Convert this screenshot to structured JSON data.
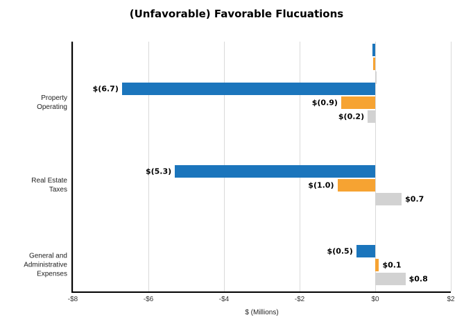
{
  "chart_data": {
    "type": "bar",
    "orientation": "horizontal",
    "title": "(Unfavorable) Favorable Flucuations",
    "xlabel": "$ (Millions)",
    "xlim": [
      -8,
      2
    ],
    "xticks": [
      -8,
      -6,
      -4,
      -2,
      0,
      2
    ],
    "xtick_labels": [
      "-$8",
      "-$6",
      "-$4",
      "-$2",
      "$0",
      "$2"
    ],
    "grid": "vertical",
    "legend": "none",
    "series_colors": [
      "#1B75BC",
      "#F6A332",
      "#D2D2D2"
    ],
    "categories": [
      {
        "label": "",
        "values": [
          -0.08,
          -0.06,
          0.03
        ],
        "bar_labels": [
          "",
          "",
          ""
        ]
      },
      {
        "label": "Property\nOperating",
        "values": [
          -6.7,
          -0.9,
          -0.2
        ],
        "bar_labels": [
          "$(6.7)",
          "$(0.9)",
          "$(0.2)"
        ]
      },
      {
        "label": "Real Estate\nTaxes",
        "values": [
          -5.3,
          -1.0,
          0.7
        ],
        "bar_labels": [
          "$(5.3)",
          "$(1.0)",
          "$0.7"
        ]
      },
      {
        "label": "General and\nAdministrative\nExpenses",
        "values": [
          -0.5,
          0.1,
          0.8
        ],
        "bar_labels": [
          "$(0.5)",
          "$0.1",
          "$0.8"
        ]
      }
    ]
  }
}
